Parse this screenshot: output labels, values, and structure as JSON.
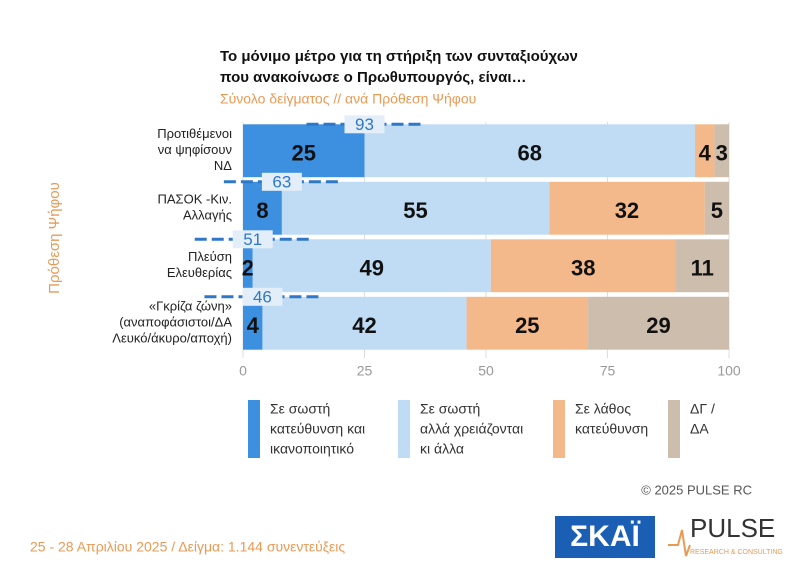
{
  "chart_data": {
    "type": "stacked_barh",
    "title": [
      "Το μόνιμο μέτρο  για τη στήριξη των συνταξιούχων",
      "που ανακοίνωσε ο Πρωθυπουργός, είναι…"
    ],
    "subtitle": "Σύνολο δείγματος // ανά Πρόθεση Ψήφου",
    "y_label": "Πρόθεση Ψήφου",
    "categories": [
      [
        "Προτιθέμενοι",
        "να ψηφίσουν",
        "ΝΔ"
      ],
      [
        "ΠΑΣΟΚ -Κιν.",
        "Αλλαγής"
      ],
      [
        "Πλεύση",
        "Ελευθερίας"
      ],
      [
        "«Γκρίζα ζώνη»",
        "(αναποφάσιστοι/ΔΑ",
        "Λευκό/άκυρο/αποχή)"
      ]
    ],
    "series": [
      {
        "name": [
          "Σε σωστή",
          "κατεύθυνση και",
          "ικανοποιητικό"
        ],
        "color": "#3d8fdf",
        "values": [
          25,
          8,
          2,
          4
        ]
      },
      {
        "name": [
          "Σε σωστή",
          "αλλά χρειάζονται",
          "κι άλλα"
        ],
        "color": "#bfdcf4",
        "values": [
          68,
          55,
          49,
          42
        ]
      },
      {
        "name": [
          "Σε λάθος",
          "κατεύθυνση"
        ],
        "color": "#f4b98a",
        "values": [
          4,
          32,
          38,
          25
        ]
      },
      {
        "name": [
          "ΔΓ /",
          "ΔΑ"
        ],
        "color": "#cdbdac",
        "values": [
          3,
          5,
          11,
          29
        ]
      }
    ],
    "combined": {
      "color": "#2f78c9",
      "values": [
        93,
        63,
        51,
        46
      ]
    },
    "xlim": [
      0,
      100
    ],
    "xticks": [
      0,
      25,
      50,
      75,
      100
    ],
    "copyright": "©  2025  PULSE RC",
    "footer": "25 - 28 Απριλίου 2025  /  Δείγμα:  1.144 συνεντεύξεις",
    "logos": [
      "ΣΚΑΪ",
      "PULSE",
      "RESEARCH & CONSULTING"
    ]
  }
}
